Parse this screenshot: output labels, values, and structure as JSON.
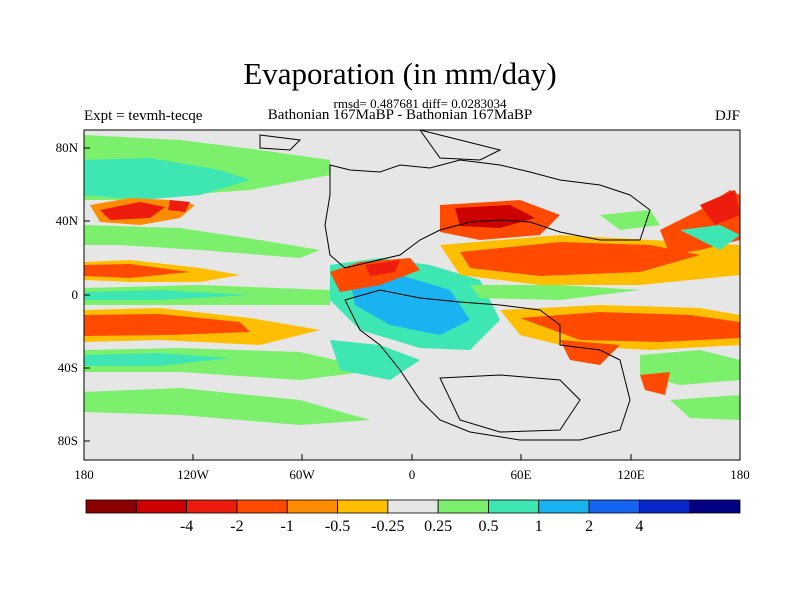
{
  "header": {
    "title": "Evaporation (in mm/day)",
    "stats": "rmsd= 0.487681 diff= 0.0283034",
    "experiment": "Expt = tevmh-tecqe",
    "subtitle": "Bathonian 167MaBP - Bathonian 167MaBP",
    "season": "DJF"
  },
  "map": {
    "lon_range": [
      -180,
      180
    ],
    "lat_range": [
      -90,
      90
    ],
    "x_ticks": [
      "180",
      "120W",
      "60W",
      "0",
      "60E",
      "120E",
      "180"
    ],
    "y_ticks": [
      "80N",
      "40N",
      "0",
      "40S",
      "80S"
    ],
    "background_color": "#e6e6e6"
  },
  "colorbar": {
    "labels": [
      "-4",
      "-2",
      "-1",
      "-0.5",
      "-0.25",
      "0.25",
      "0.5",
      "1",
      "2",
      "4"
    ],
    "colors": [
      "#8b0000",
      "#cc0000",
      "#ee1c0c",
      "#ff4a00",
      "#ff8c00",
      "#ffbf00",
      "#e6e6e6",
      "#7cf06c",
      "#3de6b2",
      "#1ab2f0",
      "#1464f0",
      "#0a28c8",
      "#000080"
    ]
  }
}
